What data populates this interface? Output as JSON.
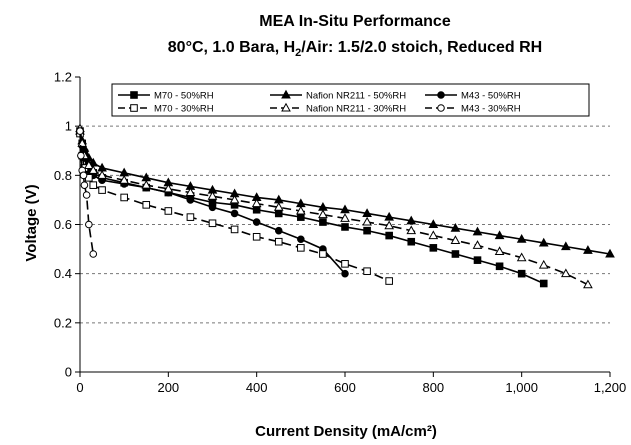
{
  "chart_data": {
    "type": "line",
    "title": "MEA In-Situ Performance",
    "subtitle": {
      "prefix": "80°C, 1.0 Bara, H",
      "sub": "2",
      "suffix": "/Air: 1.5/2.0 stoich, Reduced RH"
    },
    "xlabel": "Current Density (mA/cm²)",
    "ylabel": "Voltage (V)",
    "xlim": [
      0,
      1200
    ],
    "ylim": [
      0,
      1.2
    ],
    "x_ticks": [
      0,
      200,
      400,
      600,
      800,
      1000,
      1200
    ],
    "x_tick_labels": [
      "0",
      "200",
      "400",
      "600",
      "800",
      "1,000",
      "1,200"
    ],
    "y_ticks": [
      0,
      0.2,
      0.4,
      0.6,
      0.8,
      1.0,
      1.2
    ],
    "y_tick_labels": [
      "0",
      "0.2",
      "0.4",
      "0.6",
      "0.8",
      "1",
      "1.2"
    ],
    "grid": "horizontal dashed",
    "legend": "top, inside plot",
    "series": [
      {
        "name": "M70 - 50%RH",
        "marker": "square-filled",
        "line": "solid",
        "x": [
          0,
          5,
          10,
          20,
          30,
          50,
          100,
          150,
          200,
          250,
          300,
          350,
          400,
          450,
          500,
          550,
          600,
          650,
          700,
          750,
          800,
          850,
          900,
          950,
          1000,
          1050
        ],
        "y": [
          0.98,
          0.93,
          0.89,
          0.84,
          0.81,
          0.79,
          0.77,
          0.75,
          0.73,
          0.71,
          0.69,
          0.68,
          0.66,
          0.645,
          0.63,
          0.61,
          0.59,
          0.575,
          0.555,
          0.53,
          0.505,
          0.48,
          0.455,
          0.43,
          0.4,
          0.36
        ]
      },
      {
        "name": "Nafion NR211 - 50%RH",
        "marker": "triangle-filled",
        "line": "solid",
        "x": [
          0,
          5,
          10,
          20,
          30,
          50,
          100,
          150,
          200,
          250,
          300,
          350,
          400,
          450,
          500,
          550,
          600,
          650,
          700,
          750,
          800,
          850,
          900,
          950,
          1000,
          1050,
          1100,
          1150,
          1200
        ],
        "y": [
          0.98,
          0.94,
          0.91,
          0.87,
          0.85,
          0.83,
          0.81,
          0.79,
          0.77,
          0.755,
          0.74,
          0.725,
          0.71,
          0.7,
          0.685,
          0.67,
          0.66,
          0.645,
          0.63,
          0.615,
          0.6,
          0.585,
          0.57,
          0.555,
          0.54,
          0.525,
          0.51,
          0.495,
          0.48
        ]
      },
      {
        "name": "M43 - 50%RH",
        "marker": "circle-filled",
        "line": "solid",
        "x": [
          0,
          5,
          10,
          20,
          30,
          50,
          100,
          150,
          200,
          250,
          300,
          350,
          400,
          450,
          500,
          550,
          600
        ],
        "y": [
          0.97,
          0.92,
          0.87,
          0.82,
          0.8,
          0.78,
          0.765,
          0.75,
          0.73,
          0.7,
          0.67,
          0.645,
          0.61,
          0.575,
          0.54,
          0.5,
          0.4
        ]
      },
      {
        "name": "M70 - 30%RH",
        "marker": "square-open",
        "line": "dashed",
        "x": [
          0,
          5,
          10,
          20,
          30,
          50,
          100,
          150,
          200,
          250,
          300,
          350,
          400,
          450,
          500,
          550,
          600,
          650,
          700
        ],
        "y": [
          0.97,
          0.88,
          0.83,
          0.79,
          0.76,
          0.74,
          0.71,
          0.68,
          0.655,
          0.63,
          0.605,
          0.58,
          0.55,
          0.53,
          0.505,
          0.48,
          0.44,
          0.41,
          0.37
        ]
      },
      {
        "name": "Nafion NR211 - 30%RH",
        "marker": "triangle-open",
        "line": "dashed",
        "x": [
          0,
          5,
          10,
          20,
          30,
          50,
          100,
          150,
          200,
          250,
          300,
          350,
          400,
          450,
          500,
          550,
          600,
          650,
          700,
          750,
          800,
          850,
          900,
          950,
          1000,
          1050,
          1100,
          1150
        ],
        "y": [
          0.99,
          0.93,
          0.88,
          0.84,
          0.82,
          0.8,
          0.78,
          0.76,
          0.745,
          0.73,
          0.715,
          0.7,
          0.685,
          0.67,
          0.655,
          0.64,
          0.625,
          0.61,
          0.595,
          0.575,
          0.555,
          0.535,
          0.515,
          0.49,
          0.465,
          0.435,
          0.4,
          0.355
        ]
      },
      {
        "name": "M43 - 30%RH",
        "marker": "circle-open",
        "line": "dashed",
        "x": [
          0,
          2,
          5,
          8,
          10,
          15,
          20,
          30
        ],
        "y": [
          0.98,
          0.88,
          0.82,
          0.8,
          0.76,
          0.72,
          0.6,
          0.48
        ]
      }
    ]
  }
}
